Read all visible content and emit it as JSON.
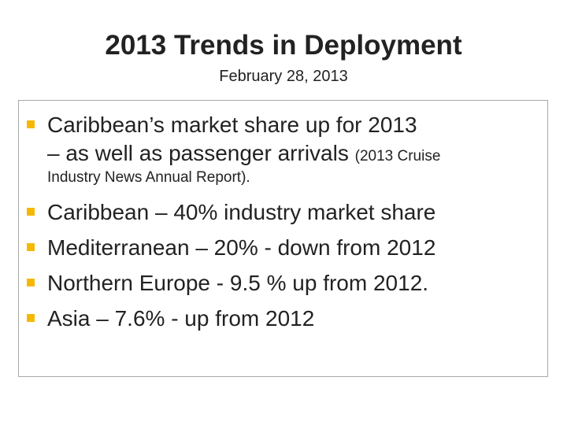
{
  "slide": {
    "title": "2013 Trends in Deployment",
    "subtitle": "February 28, 2013"
  },
  "bullets": {
    "intro_line1": "Caribbean’s market share up for 2013",
    "intro_line2": "– as well as passenger arrivals ",
    "intro_source_a": "(2013 Cruise",
    "intro_source_b": "Industry News Annual Report).",
    "items": [
      "Caribbean – 40% industry market share",
      "Mediterranean – 20% - down from 2012",
      "Northern Europe - 9.5 % up from 2012.",
      "Asia – 7.6% - up from 2012"
    ]
  },
  "colors": {
    "bullet": "#f5b800",
    "text": "#222222",
    "box_border": "#a8a8a8"
  }
}
